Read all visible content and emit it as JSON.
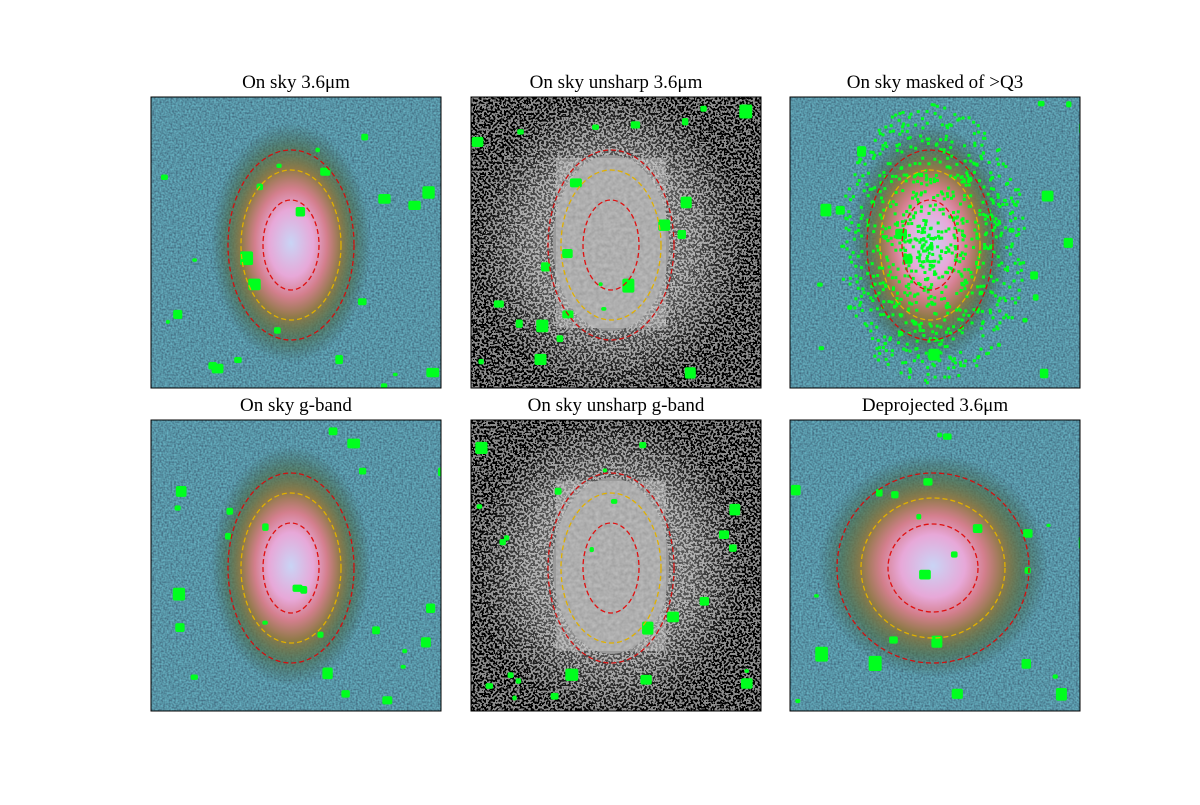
{
  "panels": [
    {
      "title": "On sky 3.6μm"
    },
    {
      "title": "On sky unsharp 3.6μm"
    },
    {
      "title": "On sky masked of >Q3"
    },
    {
      "title": "On sky g-band"
    },
    {
      "title": "On sky unsharp g-band"
    },
    {
      "title": "Deprojected 3.6μm"
    }
  ]
}
